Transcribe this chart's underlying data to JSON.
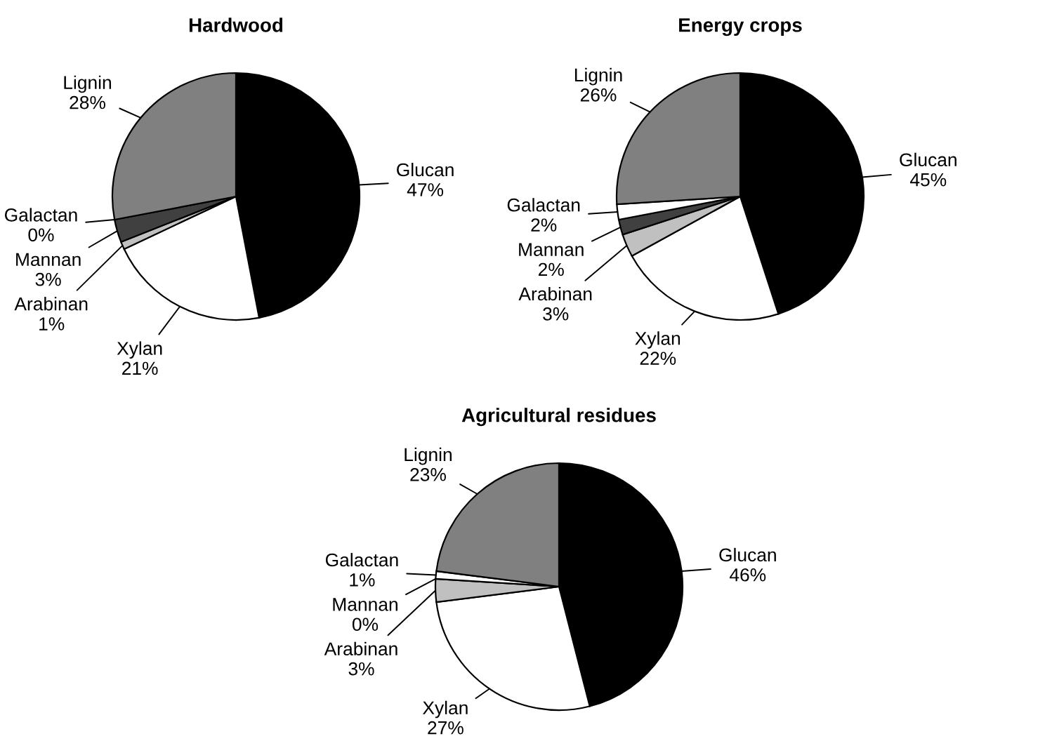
{
  "chart_data": [
    {
      "type": "pie",
      "title": "Hardwood",
      "categories": [
        "Glucan",
        "Xylan",
        "Arabinan",
        "Mannan",
        "Galactan",
        "Lignin"
      ],
      "values": [
        47,
        21,
        1,
        3,
        0,
        28
      ],
      "value_labels": [
        "47%",
        "21%",
        "1%",
        "3%",
        "0%",
        "28%"
      ],
      "colors": [
        "#000000",
        "#ffffff",
        "#c0c0c0",
        "#404040",
        "#ffffff",
        "#808080"
      ]
    },
    {
      "type": "pie",
      "title": "Energy crops",
      "categories": [
        "Glucan",
        "Xylan",
        "Arabinan",
        "Mannan",
        "Galactan",
        "Lignin"
      ],
      "values": [
        45,
        22,
        3,
        2,
        2,
        26
      ],
      "value_labels": [
        "45%",
        "22%",
        "3%",
        "2%",
        "2%",
        "26%"
      ],
      "colors": [
        "#000000",
        "#ffffff",
        "#c0c0c0",
        "#404040",
        "#ffffff",
        "#808080"
      ]
    },
    {
      "type": "pie",
      "title": "Agricultural residues",
      "categories": [
        "Glucan",
        "Xylan",
        "Arabinan",
        "Mannan",
        "Galactan",
        "Lignin"
      ],
      "values": [
        46,
        27,
        3,
        0,
        1,
        23
      ],
      "value_labels": [
        "46%",
        "27%",
        "3%",
        "0%",
        "1%",
        "23%"
      ],
      "colors": [
        "#000000",
        "#ffffff",
        "#c0c0c0",
        "#404040",
        "#ffffff",
        "#808080"
      ]
    }
  ]
}
